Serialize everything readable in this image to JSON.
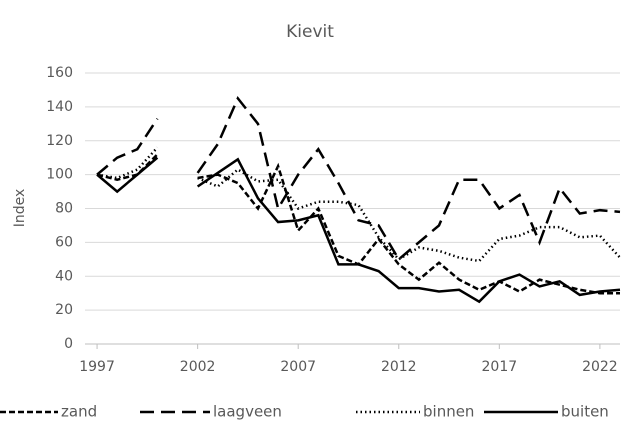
{
  "chart_data": {
    "type": "line",
    "title": "Kievit",
    "y_label": "Index",
    "x": [
      1997,
      1998,
      1999,
      2000,
      2001,
      2002,
      2003,
      2004,
      2005,
      2006,
      2007,
      2008,
      2009,
      2010,
      2011,
      2012,
      2013,
      2014,
      2015,
      2016,
      2017,
      2018,
      2019,
      2020,
      2021,
      2022,
      2023
    ],
    "series": [
      {
        "name": "zand",
        "color": "#000000",
        "dash": "6,3",
        "values": [
          100,
          97,
          100,
          112,
          null,
          98,
          100,
          95,
          80,
          105,
          67,
          80,
          52,
          47,
          62,
          47,
          38,
          48,
          38,
          32,
          37,
          31,
          38,
          35,
          32,
          30,
          30
        ]
      },
      {
        "name": "laagveen",
        "color": "#000000",
        "dash": "14,7",
        "values": [
          100,
          110,
          115,
          133,
          null,
          101,
          118,
          145,
          130,
          80,
          100,
          115,
          95,
          73,
          70,
          50,
          60,
          70,
          97,
          97,
          80,
          88,
          60,
          92,
          77,
          79,
          78
        ]
      },
      {
        "name": "binnen",
        "color": "#000000",
        "dash": "1.5,3",
        "values": [
          100,
          98,
          103,
          116,
          null,
          98,
          93,
          103,
          96,
          97,
          80,
          84,
          84,
          82,
          63,
          50,
          57,
          55,
          51,
          49,
          62,
          64,
          69,
          69,
          63,
          64,
          51
        ]
      },
      {
        "name": "buiten",
        "color": "#000000",
        "dash": "none",
        "values": [
          100,
          90,
          100,
          110,
          null,
          93,
          101,
          109,
          86,
          72,
          73,
          76,
          47,
          47,
          43,
          33,
          33,
          31,
          32,
          25,
          37,
          41,
          34,
          37,
          29,
          31,
          32
        ]
      }
    ],
    "xlim": [
      1996.4,
      2023
    ],
    "xticks": [
      1997,
      2002,
      2007,
      2012,
      2017,
      2022
    ],
    "ylim": [
      0,
      160
    ],
    "yticks": [
      0,
      20,
      40,
      60,
      80,
      100,
      120,
      140,
      160
    ],
    "grid": true,
    "legend": "bottom"
  }
}
